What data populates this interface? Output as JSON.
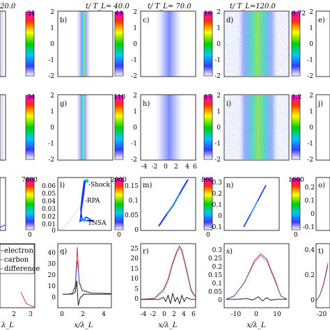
{
  "chart_data": {
    "type": "heatmap",
    "columns": [
      {
        "time_label": "20.0"
      },
      {
        "time_label": "t/ T_L= 40.0"
      },
      {
        "time_label": "t/ T_L= 70.0"
      },
      {
        "time_label": "t/ T_L=120.0"
      },
      {
        "time_label": ""
      }
    ],
    "row1": {
      "panels": [
        {
          "letter": "",
          "cmax": "31"
        },
        {
          "letter": "b)",
          "cmax": "44"
        },
        {
          "letter": "c)",
          "cmax": "16"
        },
        {
          "letter": "d)",
          "cmax": "0.72"
        },
        {
          "letter": "e)",
          "cmax": ""
        }
      ],
      "yticks": [
        "2",
        "1",
        "0",
        "-1",
        "-2"
      ]
    },
    "row2": {
      "panels": [
        {
          "letter": "",
          "cmax": "34"
        },
        {
          "letter": "g)",
          "cmax": "110"
        },
        {
          "letter": "h)",
          "cmax": "17"
        },
        {
          "letter": "i)",
          "cmax": "1.2"
        },
        {
          "letter": "j)",
          "cmax": ""
        }
      ],
      "yticks": [
        "2",
        "1",
        "0",
        "-1",
        "-2"
      ],
      "xticks": [
        "-4",
        "-2",
        "0",
        "2",
        "4",
        "6"
      ]
    },
    "row3": {
      "panels": [
        {
          "letter": "",
          "cmax": "7800"
        },
        {
          "letter": "l)",
          "cmax": "2000",
          "yticks": [
            "0.06",
            "0.05",
            "0.04",
            "0.03",
            "0.02",
            "0.01",
            "0"
          ],
          "ylim": [
            0,
            0.07
          ]
        },
        {
          "letter": "m)",
          "cmax": "860",
          "yticks": [
            "0.15",
            "0.1",
            "0.05",
            "0"
          ],
          "ylim": [
            0,
            0.18
          ]
        },
        {
          "letter": "n)",
          "cmax": "1600",
          "yticks": [
            "0.3",
            "0.2",
            "0.1",
            "0",
            "-0.1"
          ],
          "ylim": [
            -0.15,
            0.35
          ]
        },
        {
          "letter": "o)",
          "cmax": "",
          "yticks": [
            "0.2",
            "0.1",
            "0",
            "-0.1"
          ],
          "ylim": [
            -0.15,
            0.25
          ]
        }
      ],
      "cbar_min": "0",
      "annotations": [
        "Shock",
        "RPA",
        "TNSA"
      ]
    },
    "row4": {
      "panels": [
        {
          "letter": "",
          "xticks": [
            "2",
            "3"
          ]
        },
        {
          "letter": "q)",
          "xticks": [
            "0",
            "2",
            "4"
          ],
          "yticks": [
            "40",
            "30",
            "20",
            "10",
            "0"
          ],
          "ylim": [
            -12,
            45
          ]
        },
        {
          "letter": "r)",
          "xticks": [
            "-4",
            "-2",
            "0",
            "2",
            "4",
            "6"
          ],
          "yticks": [
            "25",
            "20",
            "15",
            "10",
            "5",
            "0"
          ],
          "ylim": [
            -4,
            27
          ]
        },
        {
          "letter": "s)",
          "xticks": [
            "-10",
            "0",
            "10"
          ],
          "yticks": [
            "0.3",
            "0.25",
            "0.2",
            "0.15",
            "0.1",
            "0.05",
            "0"
          ],
          "ylim": [
            -0.05,
            0.33
          ]
        },
        {
          "letter": "t)",
          "xticks": [
            "-20"
          ],
          "yticks": [
            "0.4",
            "0.2",
            "0"
          ],
          "ylim": [
            -0.05,
            0.45
          ]
        }
      ],
      "xlabel": "x/λ_L",
      "left_xlabel": "λ_L",
      "series": [
        {
          "name": "electron",
          "color": "#d62728"
        },
        {
          "name": "carbon",
          "color": "#1f3fbf"
        },
        {
          "name": "difference",
          "color": "#000000"
        }
      ],
      "q_electron": [
        [
          0,
          0
        ],
        [
          0.6,
          0
        ],
        [
          1.0,
          1
        ],
        [
          1.3,
          8
        ],
        [
          1.5,
          42
        ],
        [
          1.7,
          10
        ],
        [
          2.0,
          3
        ],
        [
          3,
          1
        ],
        [
          4,
          1
        ],
        [
          5,
          0.5
        ]
      ],
      "q_carbon": [
        [
          0,
          0
        ],
        [
          0.6,
          0
        ],
        [
          1.0,
          1
        ],
        [
          1.3,
          6
        ],
        [
          1.5,
          30
        ],
        [
          1.7,
          12
        ],
        [
          2.0,
          4
        ],
        [
          3,
          1
        ],
        [
          4,
          1
        ],
        [
          5,
          0.5
        ]
      ],
      "q_diff": [
        [
          0,
          0
        ],
        [
          0.6,
          0
        ],
        [
          1.0,
          0
        ],
        [
          1.3,
          2
        ],
        [
          1.45,
          12
        ],
        [
          1.6,
          -10
        ],
        [
          1.8,
          -3
        ],
        [
          2.2,
          0
        ],
        [
          5,
          0
        ]
      ],
      "r_electron": [
        [
          -5,
          0
        ],
        [
          -2,
          0.5
        ],
        [
          0,
          5
        ],
        [
          1,
          10
        ],
        [
          2,
          18
        ],
        [
          3,
          24
        ],
        [
          3.5,
          26
        ],
        [
          4,
          24
        ],
        [
          5,
          15
        ],
        [
          6,
          5
        ],
        [
          7,
          1
        ]
      ],
      "r_carbon": [
        [
          -5,
          0
        ],
        [
          -2,
          0.5
        ],
        [
          0,
          4
        ],
        [
          1,
          9
        ],
        [
          2,
          17
        ],
        [
          3,
          23
        ],
        [
          3.5,
          25
        ],
        [
          4,
          23
        ],
        [
          5,
          14
        ],
        [
          6,
          4
        ],
        [
          7,
          1
        ]
      ],
      "r_diff": [
        [
          -5,
          0
        ],
        [
          -2,
          0
        ],
        [
          -1,
          0
        ],
        [
          0,
          1
        ],
        [
          0.5,
          -1
        ],
        [
          1,
          2
        ],
        [
          1.5,
          -2
        ],
        [
          2,
          3
        ],
        [
          2.5,
          -1
        ],
        [
          3,
          1
        ],
        [
          3.5,
          -2
        ],
        [
          4,
          2
        ],
        [
          4.5,
          -1
        ],
        [
          5,
          1
        ],
        [
          6,
          0
        ],
        [
          7,
          0
        ]
      ],
      "s_electron": [
        [
          -14,
          0
        ],
        [
          -10,
          0.02
        ],
        [
          -5,
          0.1
        ],
        [
          0,
          0.23
        ],
        [
          3,
          0.27
        ],
        [
          6,
          0.24
        ],
        [
          10,
          0.12
        ],
        [
          13,
          0.02
        ],
        [
          16,
          0
        ]
      ],
      "s_carbon": [
        [
          -14,
          0
        ],
        [
          -10,
          0.02
        ],
        [
          -5,
          0.1
        ],
        [
          0,
          0.22
        ],
        [
          3,
          0.26
        ],
        [
          6,
          0.23
        ],
        [
          10,
          0.11
        ],
        [
          13,
          0.02
        ],
        [
          16,
          0
        ]
      ],
      "s_diff": [
        [
          -14,
          0
        ],
        [
          -8,
          0
        ],
        [
          -4,
          0.005
        ],
        [
          -1,
          -0.005
        ],
        [
          2,
          0.015
        ],
        [
          4,
          -0.01
        ],
        [
          6,
          0.01
        ],
        [
          8,
          -0.005
        ],
        [
          11,
          0
        ],
        [
          16,
          0
        ]
      ],
      "t_electron": [
        [
          -23,
          0
        ],
        [
          -21,
          0.05
        ],
        [
          -19,
          0.15
        ],
        [
          -17,
          0.3
        ]
      ],
      "t_carbon": [
        [
          -23,
          0
        ],
        [
          -21,
          0.05
        ],
        [
          -19,
          0.14
        ],
        [
          -17,
          0.28
        ]
      ]
    }
  }
}
